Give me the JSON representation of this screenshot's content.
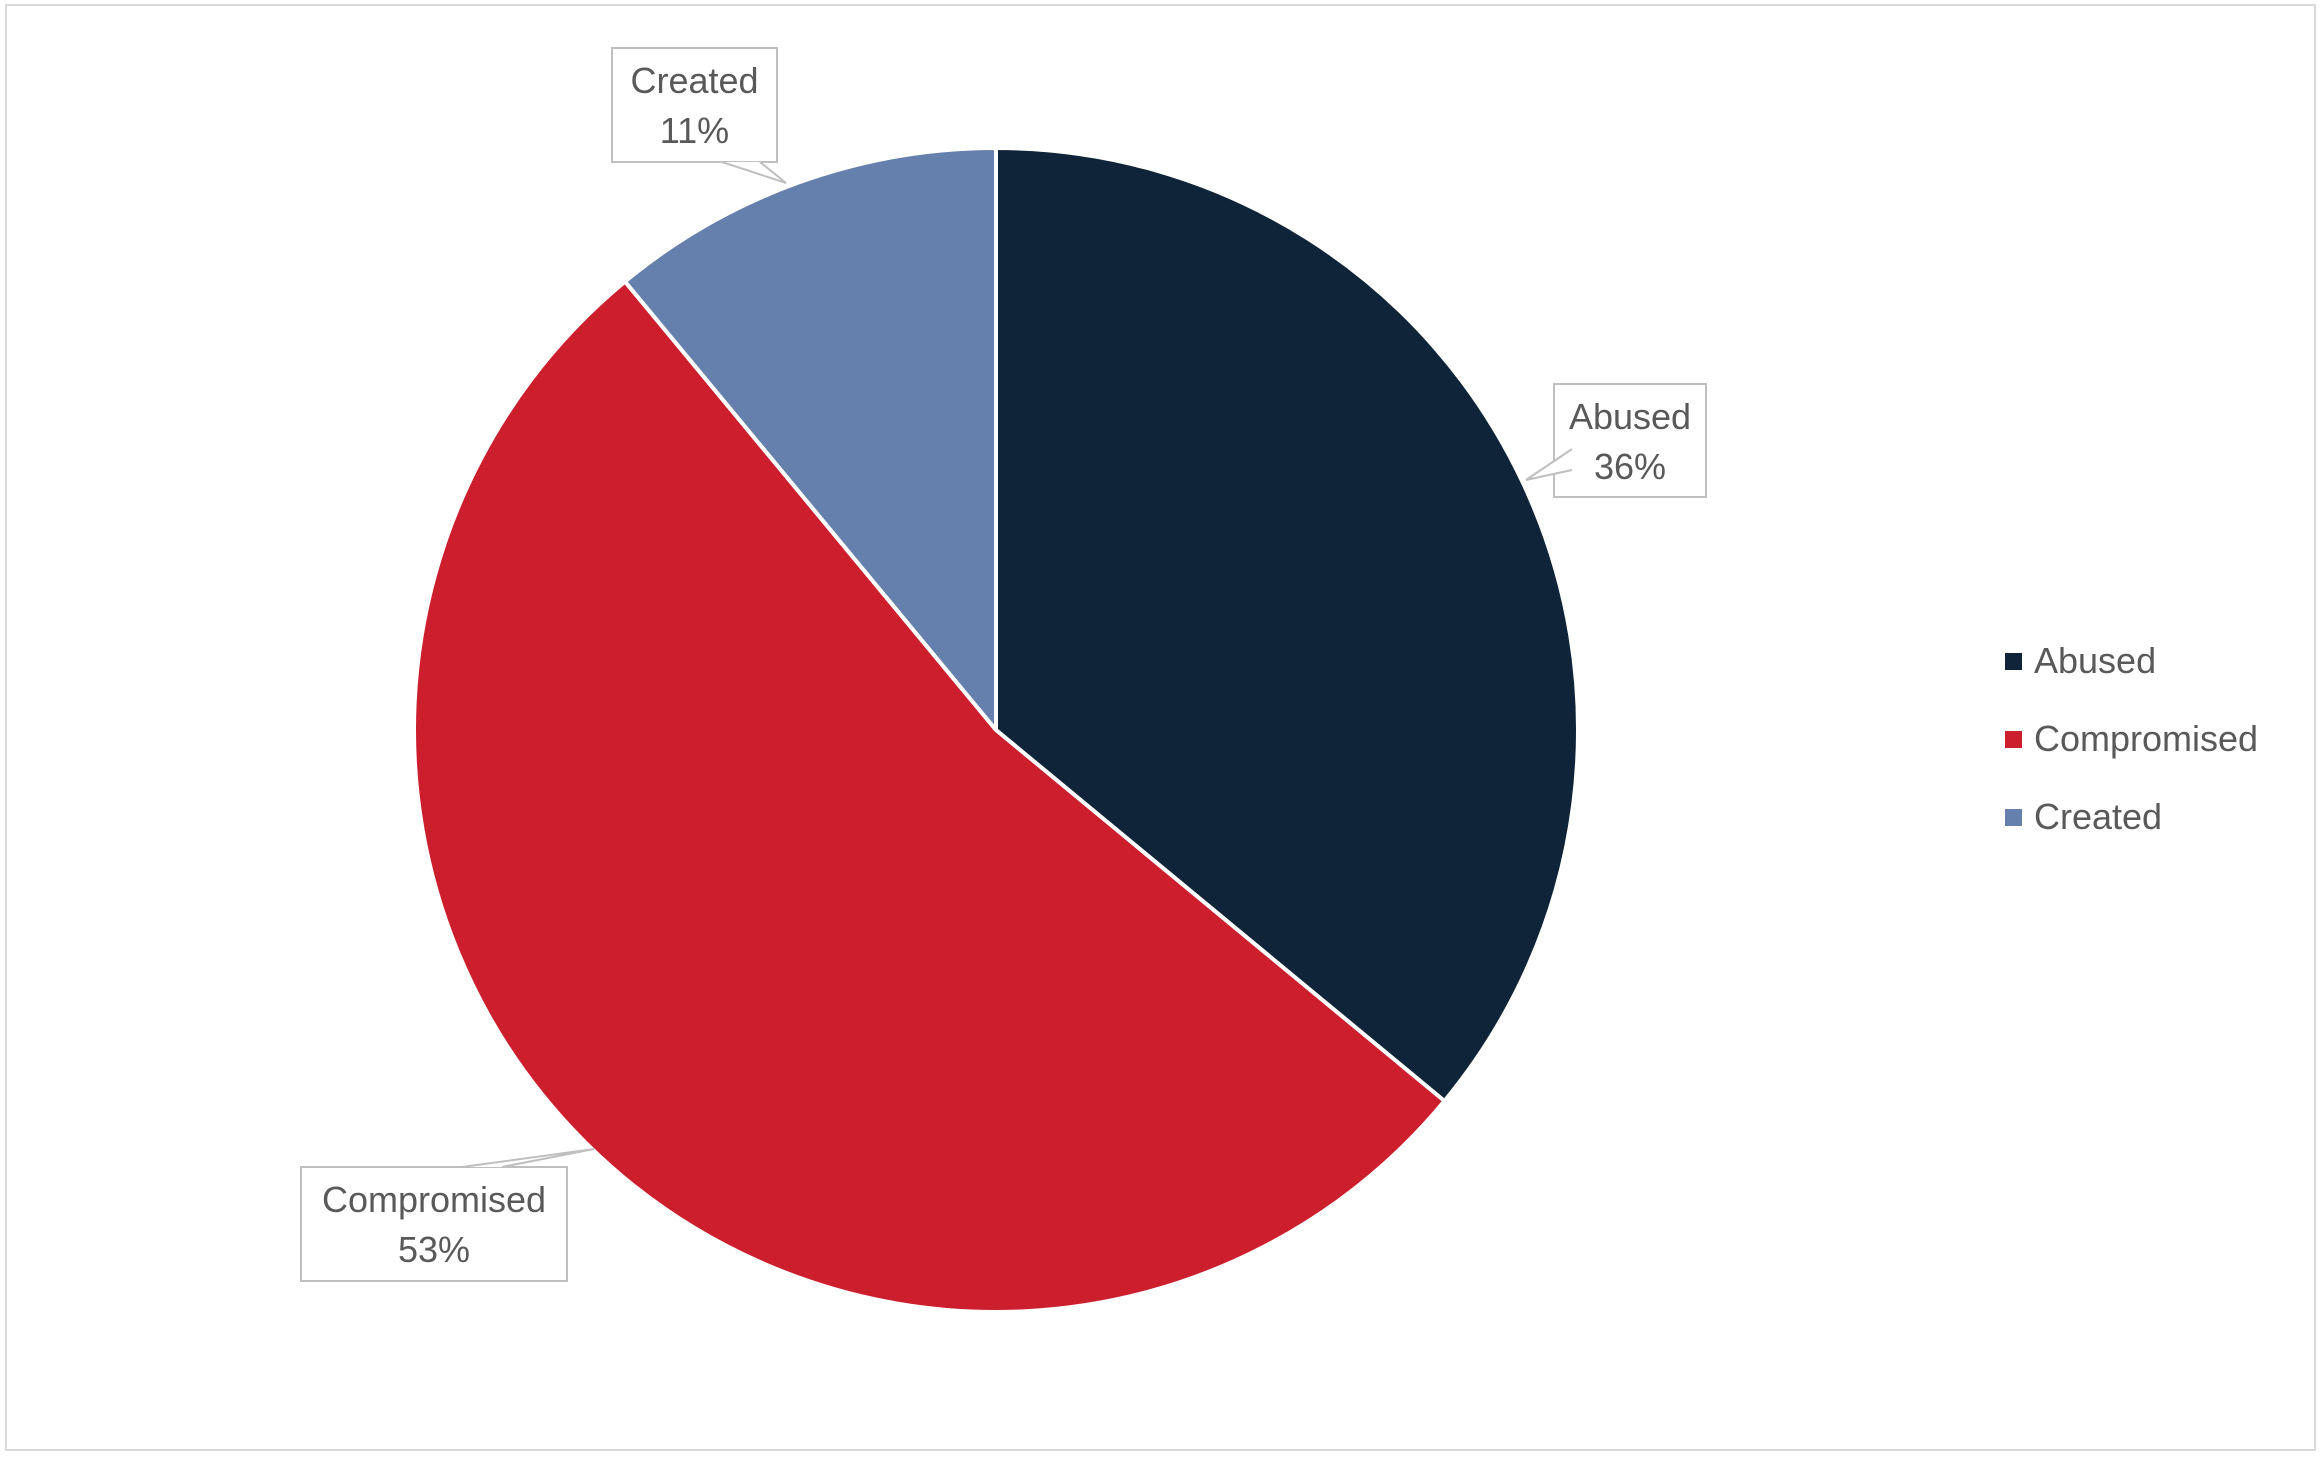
{
  "chart_data": {
    "type": "pie",
    "title": "",
    "slices": [
      {
        "label": "Abused",
        "value": 36,
        "display": "36%",
        "color": "#0f2439"
      },
      {
        "label": "Compromised",
        "value": 53,
        "display": "53%",
        "color": "#cc1e2d"
      },
      {
        "label": "Created",
        "value": 11,
        "display": "11%",
        "color": "#6580ac"
      }
    ],
    "start_angle_deg": 0,
    "direction": "clockwise",
    "data_labels": "callouts with category name and percentage",
    "legend_position": "right"
  },
  "legend": {
    "items": [
      {
        "label": "Abused",
        "color": "#0f2439"
      },
      {
        "label": "Compromised",
        "color": "#cc1e2d"
      },
      {
        "label": "Created",
        "color": "#6580ac"
      }
    ]
  },
  "colors": {
    "background": "#ffffff",
    "frame_border": "#d9d9d9",
    "callout_border": "#bfbfbf",
    "text": "#595959",
    "slice_separator": "#ffffff"
  }
}
